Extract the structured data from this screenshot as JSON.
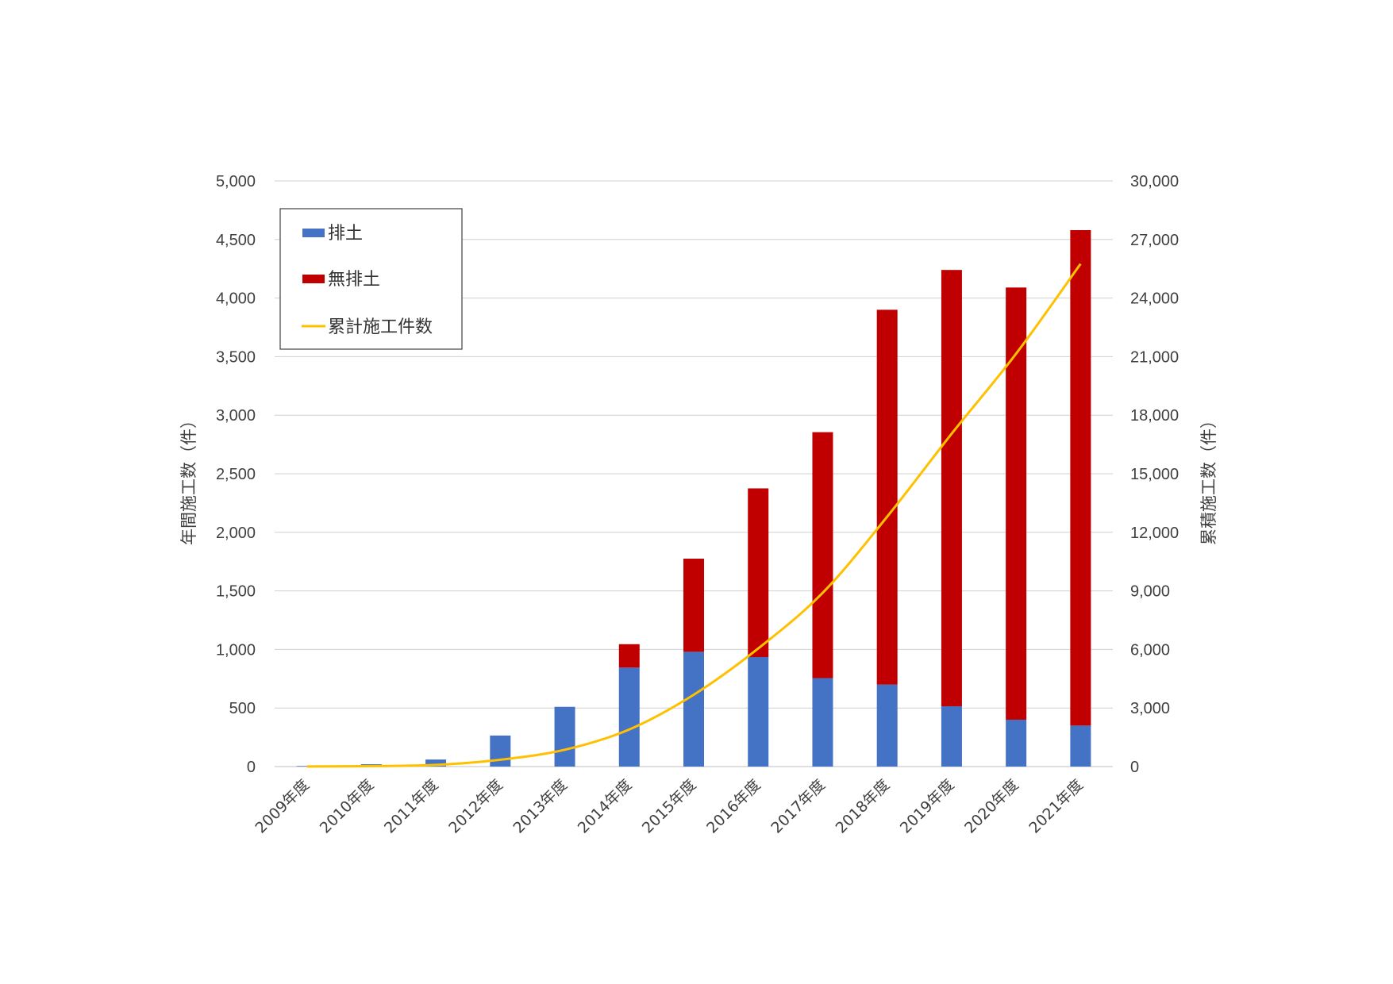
{
  "chart_data": {
    "type": "bar",
    "stacked": true,
    "categories": [
      "2009年度",
      "2010年度",
      "2011年度",
      "2012年度",
      "2013年度",
      "2014年度",
      "2015年度",
      "2016年度",
      "2017年度",
      "2018年度",
      "2019年度",
      "2020年度",
      "2021年度"
    ],
    "series": [
      {
        "name": "排土",
        "type": "bar",
        "axis": "left",
        "color": "#4472C4",
        "values": [
          5,
          20,
          60,
          265,
          510,
          845,
          980,
          935,
          755,
          700,
          515,
          400,
          350
        ]
      },
      {
        "name": "無排土",
        "type": "bar",
        "axis": "left",
        "color": "#C00000",
        "values": [
          0,
          0,
          0,
          0,
          0,
          200,
          795,
          1440,
          2100,
          3200,
          3725,
          3690,
          4230
        ]
      },
      {
        "name": "累計施工件数",
        "type": "line",
        "axis": "right",
        "color": "#FFC000",
        "values": [
          5,
          25,
          85,
          350,
          860,
          1900,
          3680,
          6050,
          8900,
          12800,
          17050,
          21150,
          25750
        ]
      }
    ],
    "ylabel": "年間施工数（件）",
    "y2label": "累積施工数（件）",
    "ylim": [
      0,
      5000
    ],
    "yticks": [
      "0",
      "500",
      "1,000",
      "1,500",
      "2,000",
      "2,500",
      "3,000",
      "3,500",
      "4,000",
      "4,500",
      "5,000"
    ],
    "y2lim": [
      0,
      30000
    ],
    "y2ticks": [
      "0",
      "3,000",
      "6,000",
      "9,000",
      "12,000",
      "15,000",
      "18,000",
      "21,000",
      "24,000",
      "27,000",
      "30,000"
    ],
    "grid": true,
    "legend": "top-left"
  }
}
